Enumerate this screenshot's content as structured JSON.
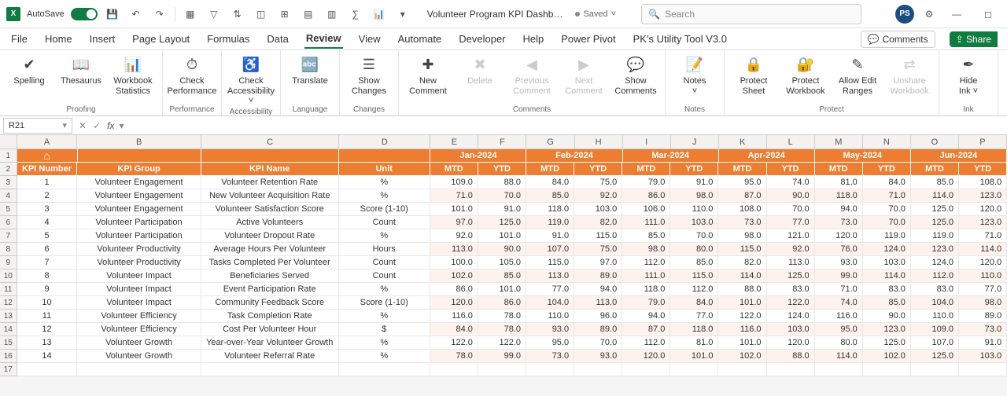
{
  "titlebar": {
    "autosave_label": "AutoSave",
    "doc_title": "Volunteer Program KPI Dashb…",
    "saved_label": "Saved",
    "search_placeholder": "Search",
    "avatar_initials": "PS"
  },
  "menutabs": {
    "tabs": [
      "File",
      "Home",
      "Insert",
      "Page Layout",
      "Formulas",
      "Data",
      "Review",
      "View",
      "Automate",
      "Developer",
      "Help",
      "Power Pivot",
      "PK's Utility Tool V3.0"
    ],
    "active_index": 6,
    "comments_label": "Comments",
    "share_label": "Share"
  },
  "ribbon": {
    "groups": [
      {
        "label": "Proofing",
        "items": [
          {
            "icon": "✔",
            "text": "Spelling",
            "name": "spelling-button"
          },
          {
            "icon": "📖",
            "text": "Thesaurus",
            "name": "thesaurus-button"
          },
          {
            "icon": "📊",
            "text": "Workbook\nStatistics",
            "name": "workbook-statistics-button"
          }
        ]
      },
      {
        "label": "Performance",
        "items": [
          {
            "icon": "⏱",
            "text": "Check\nPerformance",
            "name": "check-performance-button"
          }
        ]
      },
      {
        "label": "Accessibility",
        "items": [
          {
            "icon": "♿",
            "text": "Check\nAccessibility ˅",
            "name": "check-accessibility-button"
          }
        ]
      },
      {
        "label": "Language",
        "items": [
          {
            "icon": "🔤",
            "text": "Translate",
            "name": "translate-button"
          }
        ]
      },
      {
        "label": "Changes",
        "items": [
          {
            "icon": "☰",
            "text": "Show\nChanges",
            "name": "show-changes-button"
          }
        ]
      },
      {
        "label": "Comments",
        "items": [
          {
            "icon": "✚",
            "text": "New\nComment",
            "name": "new-comment-button"
          },
          {
            "icon": "✖",
            "text": "Delete",
            "name": "delete-comment-button",
            "disabled": true
          },
          {
            "icon": "◀",
            "text": "Previous\nComment",
            "name": "previous-comment-button",
            "disabled": true
          },
          {
            "icon": "▶",
            "text": "Next\nComment",
            "name": "next-comment-button",
            "disabled": true
          },
          {
            "icon": "💬",
            "text": "Show\nComments",
            "name": "show-comments-button"
          }
        ]
      },
      {
        "label": "Notes",
        "items": [
          {
            "icon": "📝",
            "text": "Notes\n˅",
            "name": "notes-button"
          }
        ]
      },
      {
        "label": "Protect",
        "items": [
          {
            "icon": "🔒",
            "text": "Protect\nSheet",
            "name": "protect-sheet-button"
          },
          {
            "icon": "🔐",
            "text": "Protect\nWorkbook",
            "name": "protect-workbook-button"
          },
          {
            "icon": "✎",
            "text": "Allow Edit\nRanges",
            "name": "allow-edit-ranges-button"
          },
          {
            "icon": "⇄",
            "text": "Unshare\nWorkbook",
            "name": "unshare-workbook-button",
            "disabled": true
          }
        ]
      },
      {
        "label": "Ink",
        "items": [
          {
            "icon": "✒",
            "text": "Hide\nInk ˅",
            "name": "hide-ink-button"
          }
        ]
      }
    ]
  },
  "formula_bar": {
    "name_box": "R21",
    "fx_label": "fx"
  },
  "grid": {
    "col_letters": [
      "A",
      "B",
      "C",
      "D",
      "E",
      "F",
      "G",
      "H",
      "I",
      "J",
      "K",
      "L",
      "M",
      "N",
      "O",
      "P"
    ],
    "month_headers": [
      "Jan-2024",
      "Feb-2024",
      "Mar-2024",
      "Apr-2024",
      "May-2024",
      "Jun-2024"
    ],
    "sub_headers_fixed": [
      "KPI Number",
      "KPI Group",
      "KPI Name",
      "Unit"
    ],
    "sub_header_pair": [
      "MTD",
      "YTD"
    ],
    "rows": [
      {
        "num": "1",
        "grp": "Volunteer Engagement",
        "name": "Volunteer Retention Rate",
        "unit": "%",
        "v": [
          109.0,
          88.0,
          84.0,
          75.0,
          79.0,
          91.0,
          95.0,
          74.0,
          81.0,
          84.0,
          85.0,
          108.0
        ]
      },
      {
        "num": "2",
        "grp": "Volunteer Engagement",
        "name": "New Volunteer Acquisition Rate",
        "unit": "%",
        "v": [
          71.0,
          70.0,
          85.0,
          92.0,
          86.0,
          98.0,
          87.0,
          90.0,
          118.0,
          71.0,
          114.0,
          123.0
        ]
      },
      {
        "num": "3",
        "grp": "Volunteer Engagement",
        "name": "Volunteer Satisfaction Score",
        "unit": "Score (1-10)",
        "v": [
          101.0,
          91.0,
          118.0,
          103.0,
          106.0,
          110.0,
          108.0,
          70.0,
          94.0,
          70.0,
          125.0,
          120.0
        ]
      },
      {
        "num": "4",
        "grp": "Volunteer Participation",
        "name": "Active Volunteers",
        "unit": "Count",
        "v": [
          97.0,
          125.0,
          119.0,
          82.0,
          111.0,
          103.0,
          73.0,
          77.0,
          73.0,
          70.0,
          125.0,
          123.0
        ]
      },
      {
        "num": "5",
        "grp": "Volunteer Participation",
        "name": "Volunteer Dropout Rate",
        "unit": "%",
        "v": [
          92.0,
          101.0,
          91.0,
          115.0,
          85.0,
          70.0,
          98.0,
          121.0,
          120.0,
          119.0,
          119.0,
          71.0
        ]
      },
      {
        "num": "6",
        "grp": "Volunteer Productivity",
        "name": "Average Hours Per Volunteer",
        "unit": "Hours",
        "v": [
          113.0,
          90.0,
          107.0,
          75.0,
          98.0,
          80.0,
          115.0,
          92.0,
          76.0,
          124.0,
          123.0,
          114.0
        ]
      },
      {
        "num": "7",
        "grp": "Volunteer Productivity",
        "name": "Tasks Completed Per Volunteer",
        "unit": "Count",
        "v": [
          100.0,
          105.0,
          115.0,
          97.0,
          112.0,
          85.0,
          82.0,
          113.0,
          93.0,
          103.0,
          124.0,
          120.0
        ]
      },
      {
        "num": "8",
        "grp": "Volunteer Impact",
        "name": "Beneficiaries Served",
        "unit": "Count",
        "v": [
          102.0,
          85.0,
          113.0,
          89.0,
          111.0,
          115.0,
          114.0,
          125.0,
          99.0,
          114.0,
          112.0,
          110.0
        ]
      },
      {
        "num": "9",
        "grp": "Volunteer Impact",
        "name": "Event Participation Rate",
        "unit": "%",
        "v": [
          86.0,
          101.0,
          77.0,
          94.0,
          118.0,
          112.0,
          88.0,
          83.0,
          71.0,
          83.0,
          83.0,
          77.0
        ]
      },
      {
        "num": "10",
        "grp": "Volunteer Impact",
        "name": "Community Feedback Score",
        "unit": "Score (1-10)",
        "v": [
          120.0,
          86.0,
          104.0,
          113.0,
          79.0,
          84.0,
          101.0,
          122.0,
          74.0,
          85.0,
          104.0,
          98.0
        ]
      },
      {
        "num": "11",
        "grp": "Volunteer Efficiency",
        "name": "Task Completion Rate",
        "unit": "%",
        "v": [
          116.0,
          78.0,
          110.0,
          96.0,
          94.0,
          77.0,
          122.0,
          124.0,
          116.0,
          90.0,
          110.0,
          89.0
        ]
      },
      {
        "num": "12",
        "grp": "Volunteer Efficiency",
        "name": "Cost Per Volunteer Hour",
        "unit": "$",
        "v": [
          84.0,
          78.0,
          93.0,
          89.0,
          87.0,
          118.0,
          116.0,
          103.0,
          95.0,
          123.0,
          109.0,
          73.0
        ]
      },
      {
        "num": "13",
        "grp": "Volunteer Growth",
        "name": "Year-over-Year Volunteer Growth",
        "unit": "%",
        "v": [
          122.0,
          122.0,
          95.0,
          70.0,
          112.0,
          81.0,
          101.0,
          120.0,
          80.0,
          125.0,
          107.0,
          91.0
        ]
      },
      {
        "num": "14",
        "grp": "Volunteer Growth",
        "name": "Volunteer Referral Rate",
        "unit": "%",
        "v": [
          78.0,
          99.0,
          73.0,
          93.0,
          120.0,
          101.0,
          102.0,
          88.0,
          114.0,
          102.0,
          125.0,
          103.0
        ]
      }
    ]
  },
  "colors": {
    "header_bg": "#ed7d31",
    "row_alt_bg": "#fdf2ec",
    "excel_green": "#107c41"
  }
}
